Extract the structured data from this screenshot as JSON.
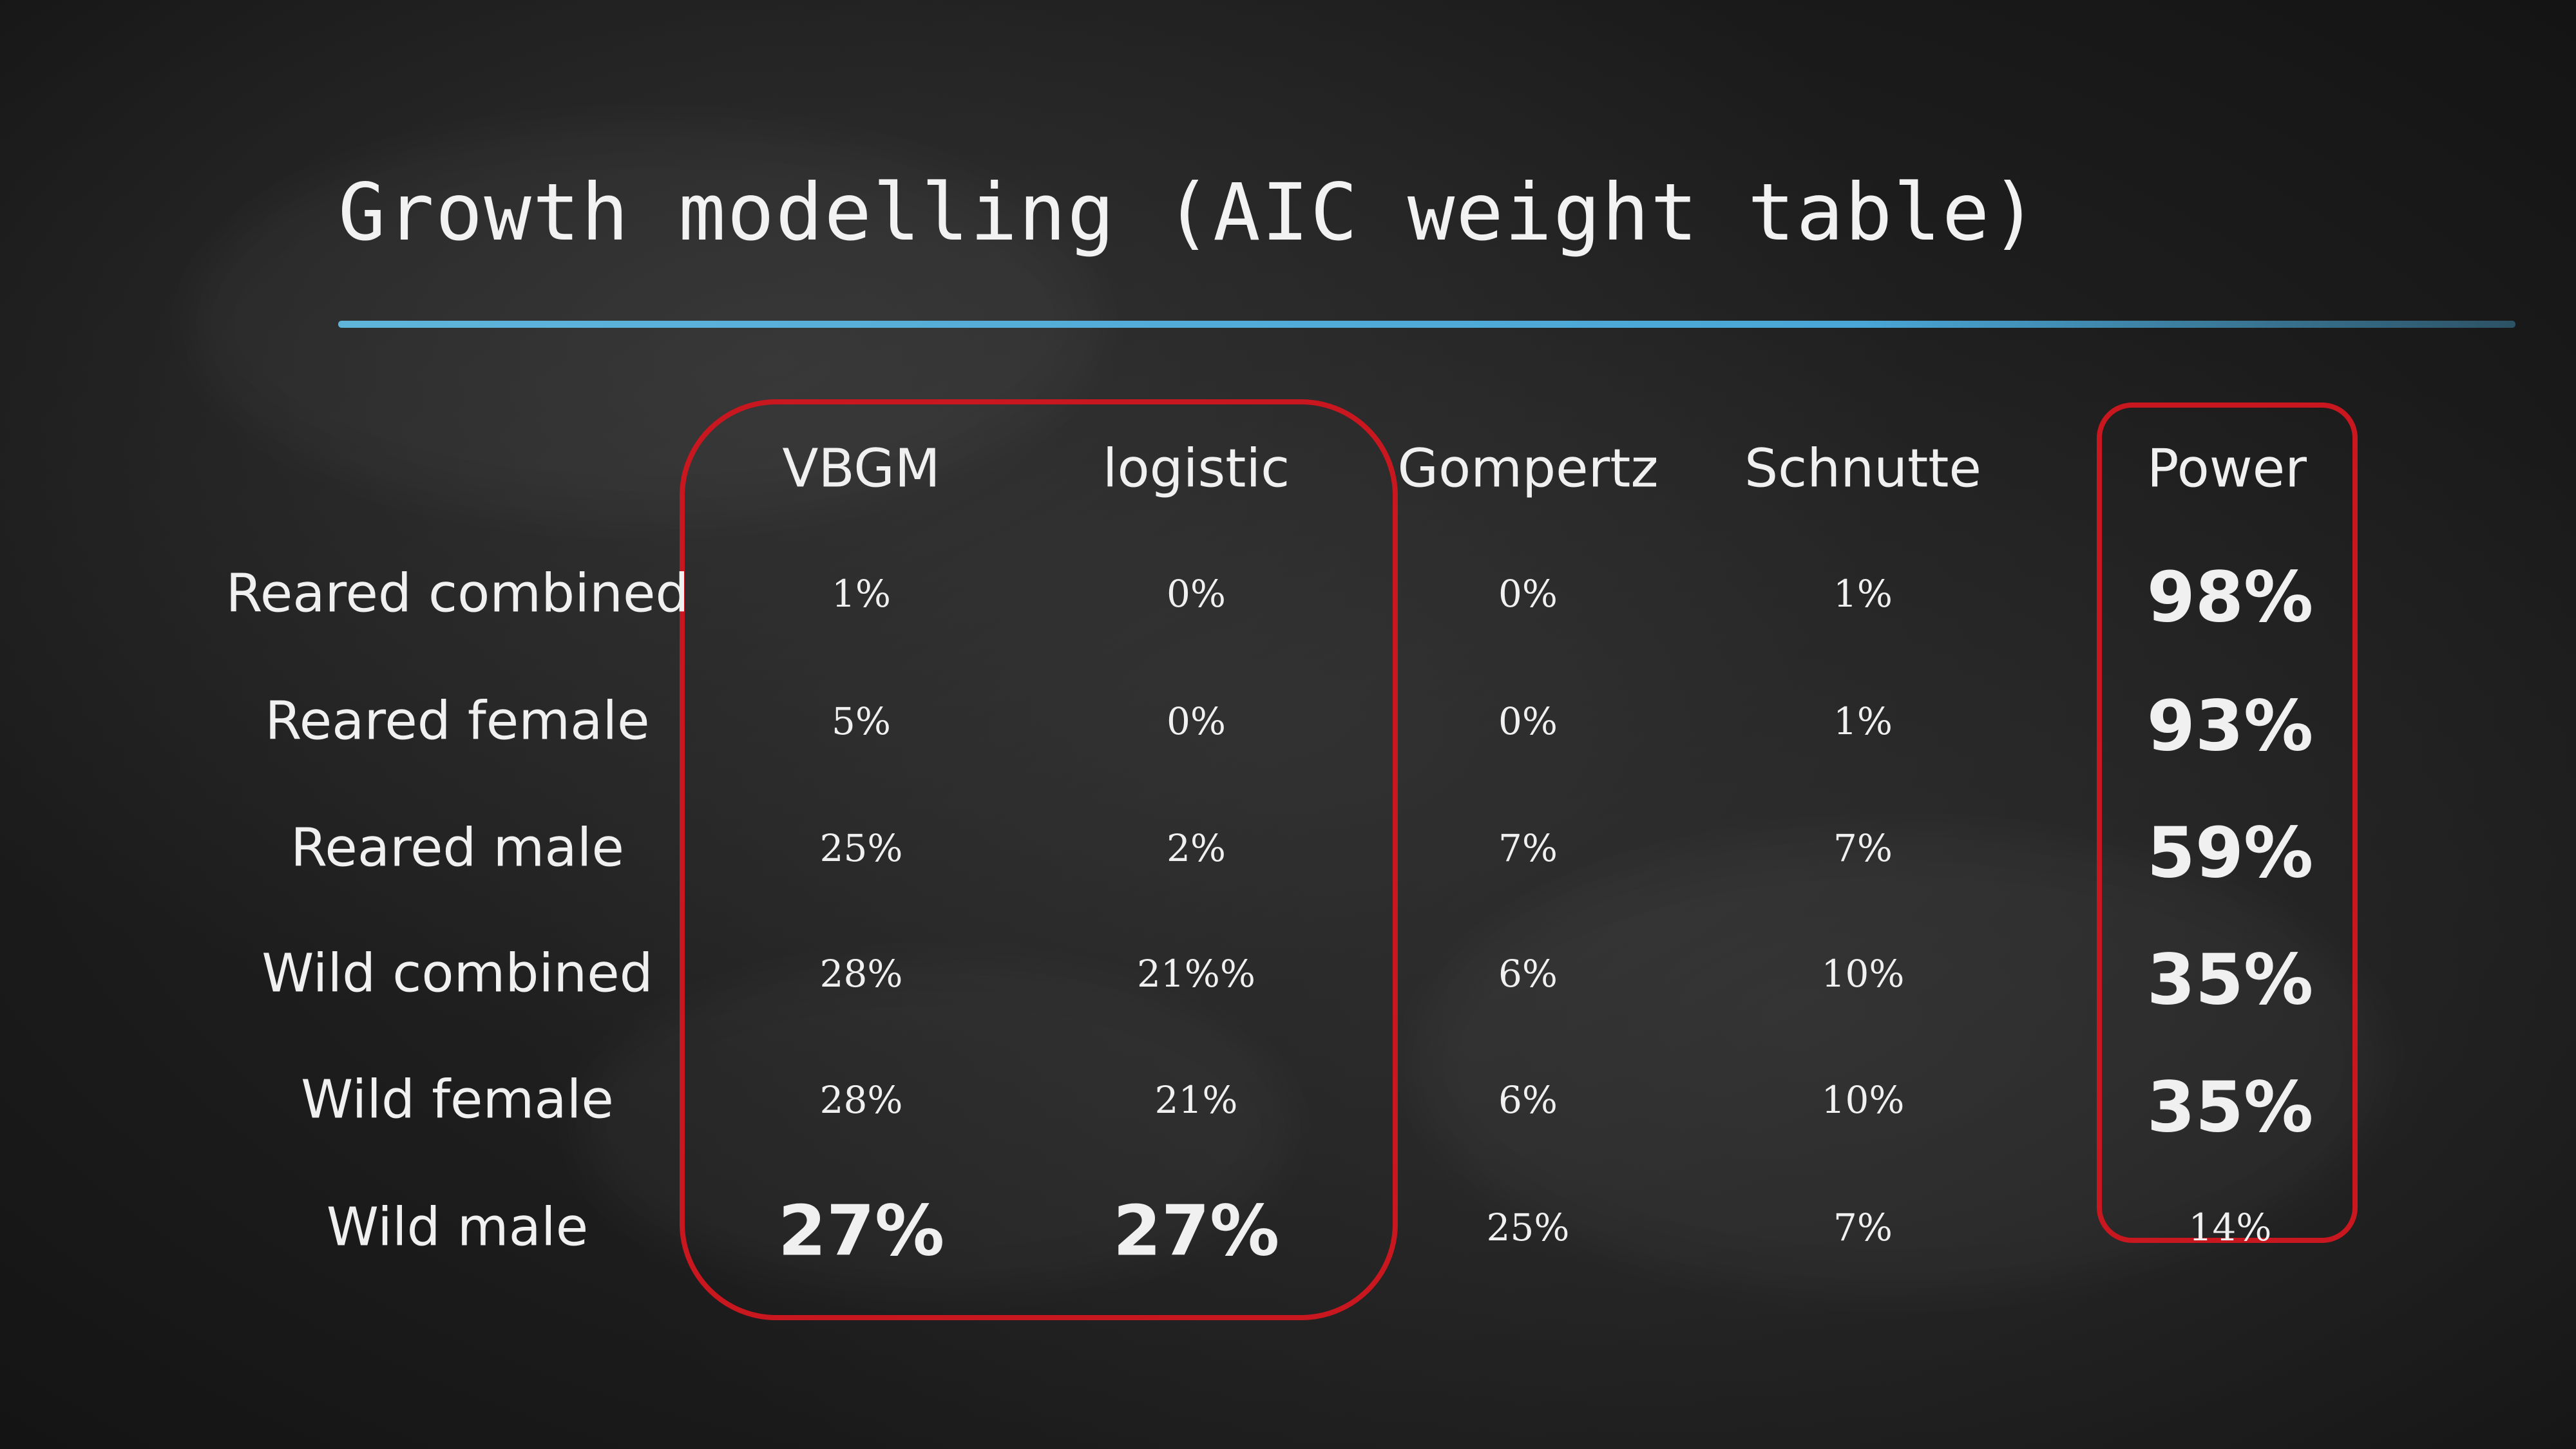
{
  "title": "Growth modelling (AIC weight table)",
  "accent_colors": {
    "rule": "#49a6d6",
    "highlight": "#c8171f"
  },
  "table": {
    "columns": [
      "VBGM",
      "logistic",
      "Gompertz",
      "Schnutte",
      "Power"
    ],
    "rows": [
      {
        "label": "Reared combined",
        "values": [
          "1%",
          "0%",
          "0%",
          "1%",
          "98%"
        ]
      },
      {
        "label": "Reared female",
        "values": [
          "5%",
          "0%",
          "0%",
          "1%",
          "93%"
        ]
      },
      {
        "label": "Reared male",
        "values": [
          "25%",
          "2%",
          "7%",
          "7%",
          "59%"
        ]
      },
      {
        "label": "Wild combined",
        "values": [
          "28%",
          "21%%",
          "6%",
          "10%",
          "35%"
        ]
      },
      {
        "label": "Wild female",
        "values": [
          "28%",
          "21%",
          "6%",
          "10%",
          "35%"
        ]
      },
      {
        "label": "Wild male",
        "values": [
          "27%",
          "27%",
          "25%",
          "7%",
          "14%"
        ]
      }
    ],
    "emphasized_cells": [
      [
        0,
        4
      ],
      [
        1,
        4
      ],
      [
        2,
        4
      ],
      [
        3,
        4
      ],
      [
        4,
        4
      ],
      [
        5,
        0
      ],
      [
        5,
        1
      ]
    ]
  }
}
